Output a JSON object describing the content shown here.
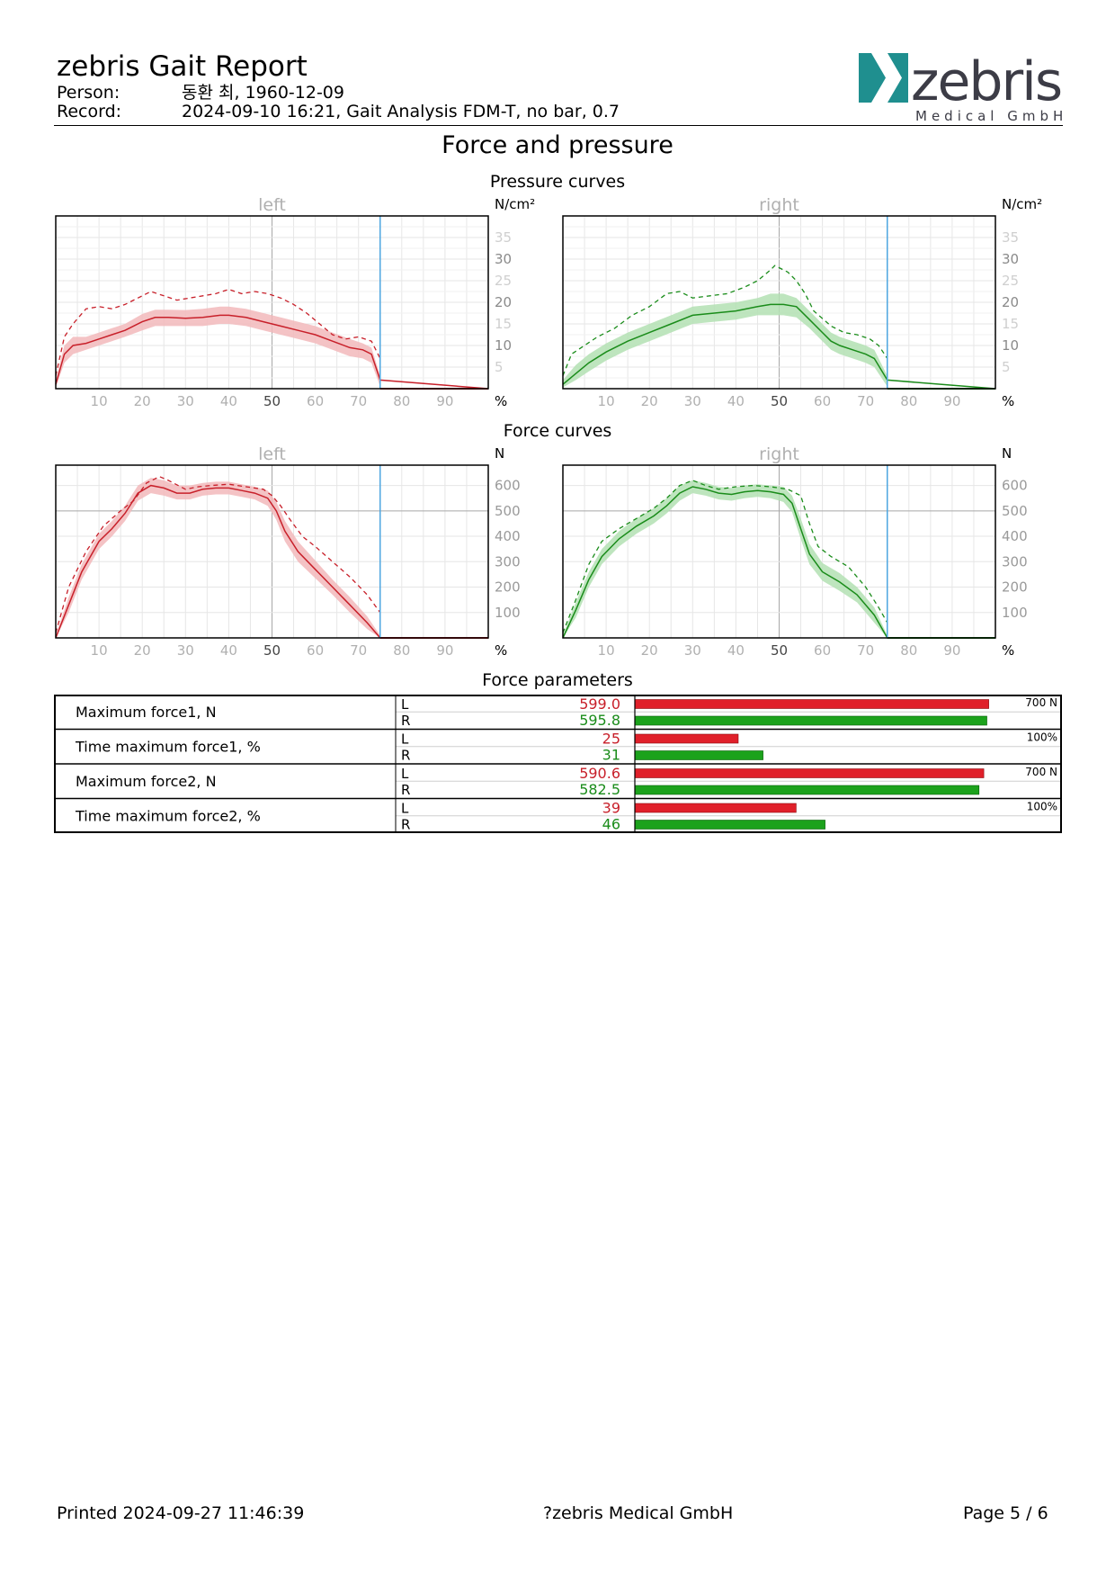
{
  "header": {
    "title": "zebris Gait Report",
    "person_label": "Person:",
    "person_value": "동환 최, 1960-12-09",
    "record_label": "Record:",
    "record_value": "2024-09-10 16:21, Gait Analysis FDM-T, no bar, 0.7",
    "logo_name": "zebris",
    "logo_sub": "Medical GmbH"
  },
  "section_title": "Force and pressure",
  "pressure_title": "Pressure curves",
  "force_title": "Force curves",
  "params_title": "Force parameters",
  "colors": {
    "left": "#c8202a",
    "left_band": "#f2b8bb",
    "right": "#1a8c1a",
    "right_band": "#b3e0b3",
    "stance_marker": "#4da6e0",
    "grid": "#e6e6e6",
    "grid_major": "#a8a8a8",
    "tick_faint": "#b0b0b0"
  },
  "chart_data": [
    {
      "type": "line",
      "title": "left",
      "ylabel": "N/cm²",
      "xlabel": "%",
      "xlim": [
        0,
        100
      ],
      "ylim": [
        0,
        40
      ],
      "xticks": [
        10,
        20,
        30,
        40,
        50,
        60,
        70,
        80,
        90
      ],
      "yticks": [
        5,
        10,
        15,
        20,
        25,
        30,
        35
      ],
      "stance_end": 75,
      "series": [
        {
          "style": "mean",
          "x": [
            0,
            2,
            4,
            7,
            10,
            13,
            16,
            20,
            23,
            26,
            30,
            34,
            38,
            40,
            44,
            48,
            52,
            56,
            60,
            64,
            68,
            71,
            73,
            75,
            100
          ],
          "y": [
            1,
            8,
            10,
            10.5,
            11.5,
            12.5,
            13.5,
            15.5,
            16.5,
            16.5,
            16.3,
            16.5,
            17,
            17,
            16.5,
            15.5,
            14.5,
            13.5,
            12.5,
            11,
            9.5,
            9,
            8,
            2,
            0
          ]
        },
        {
          "style": "band_upper",
          "x": [
            0,
            2,
            4,
            7,
            10,
            13,
            16,
            20,
            23,
            26,
            30,
            34,
            38,
            40,
            44,
            48,
            52,
            56,
            60,
            64,
            68,
            71,
            73,
            75
          ],
          "y": [
            2,
            10,
            12,
            12,
            13,
            14,
            15,
            17.3,
            18.3,
            18.3,
            18.2,
            18.5,
            19,
            19,
            18.5,
            17.5,
            16.5,
            15.5,
            14.5,
            13,
            11.5,
            10.5,
            9.5,
            3
          ]
        },
        {
          "style": "band_lower",
          "x": [
            0,
            2,
            4,
            7,
            10,
            13,
            16,
            20,
            23,
            26,
            30,
            34,
            38,
            40,
            44,
            48,
            52,
            56,
            60,
            64,
            68,
            71,
            73,
            75
          ],
          "y": [
            0.3,
            6,
            8,
            9,
            10,
            11,
            12,
            13.5,
            14.5,
            14.5,
            14.5,
            14.5,
            15,
            15,
            14.5,
            13.5,
            12.5,
            11.5,
            10.5,
            9,
            7.5,
            7,
            6,
            0.5
          ]
        },
        {
          "style": "max",
          "x": [
            0,
            2,
            4,
            7,
            10,
            13,
            16,
            19,
            22,
            25,
            28,
            31,
            34,
            37,
            40,
            43,
            46,
            49,
            52,
            55,
            58,
            61,
            64,
            67,
            70,
            73,
            75
          ],
          "y": [
            3,
            12,
            15,
            18.5,
            19,
            18.5,
            19.5,
            21,
            22.5,
            21.5,
            20.5,
            21,
            21.5,
            22,
            23,
            22,
            22.5,
            22,
            21,
            19.5,
            17.5,
            15,
            12.5,
            11.5,
            12,
            11,
            7
          ]
        },
        {
          "style": "swing",
          "x": [
            75,
            100
          ],
          "y": [
            0,
            0
          ]
        }
      ]
    },
    {
      "type": "line",
      "title": "right",
      "ylabel": "N/cm²",
      "xlabel": "%",
      "xlim": [
        0,
        100
      ],
      "ylim": [
        0,
        40
      ],
      "xticks": [
        10,
        20,
        30,
        40,
        50,
        60,
        70,
        80,
        90
      ],
      "yticks": [
        5,
        10,
        15,
        20,
        25,
        30,
        35
      ],
      "stance_end": 75,
      "series": [
        {
          "style": "mean",
          "x": [
            0,
            3,
            6,
            10,
            15,
            20,
            25,
            30,
            35,
            40,
            45,
            48,
            51,
            54,
            57,
            60,
            62,
            64,
            67,
            70,
            72,
            75,
            100
          ],
          "y": [
            1,
            3.5,
            6,
            8.5,
            11,
            13,
            15,
            17,
            17.5,
            18,
            19,
            19.5,
            19.5,
            19,
            16,
            13,
            11,
            10,
            9,
            8,
            7,
            2,
            0
          ]
        },
        {
          "style": "band_upper",
          "x": [
            0,
            3,
            6,
            10,
            15,
            20,
            25,
            30,
            35,
            40,
            45,
            48,
            51,
            54,
            57,
            60,
            62,
            64,
            67,
            70,
            72,
            75
          ],
          "y": [
            2,
            5.5,
            8,
            10.5,
            13,
            15,
            17,
            19,
            19.5,
            20,
            21,
            22,
            22,
            21,
            18,
            15,
            13,
            12,
            11,
            10,
            9,
            3
          ]
        },
        {
          "style": "band_lower",
          "x": [
            0,
            3,
            6,
            10,
            15,
            20,
            25,
            30,
            35,
            40,
            45,
            48,
            51,
            54,
            57,
            60,
            62,
            64,
            67,
            70,
            72,
            75
          ],
          "y": [
            0.3,
            2,
            4,
            6.5,
            9,
            11,
            13,
            15,
            15.5,
            16,
            17,
            17,
            17,
            16.5,
            14,
            11,
            9,
            8,
            7,
            6,
            5,
            0.5
          ]
        },
        {
          "style": "max",
          "x": [
            0,
            2,
            5,
            8,
            12,
            16,
            20,
            24,
            27,
            30,
            34,
            38,
            42,
            45,
            48,
            49,
            52,
            54,
            56,
            58,
            62,
            65,
            68,
            71,
            73,
            75
          ],
          "y": [
            3,
            8,
            10,
            12,
            14,
            17,
            19,
            22,
            22.5,
            21,
            21.5,
            22,
            23.5,
            25,
            27.5,
            28.5,
            27,
            25,
            22,
            18,
            14.5,
            13,
            12.5,
            11.5,
            10,
            7
          ]
        },
        {
          "style": "swing",
          "x": [
            75,
            100
          ],
          "y": [
            0,
            0
          ]
        }
      ]
    },
    {
      "type": "line",
      "title": "left",
      "ylabel": "N",
      "xlabel": "%",
      "xlim": [
        0,
        100
      ],
      "ylim": [
        0,
        680
      ],
      "xticks": [
        10,
        20,
        30,
        40,
        50,
        60,
        70,
        80,
        90
      ],
      "yticks": [
        100,
        200,
        300,
        400,
        500,
        600
      ],
      "stance_end": 75,
      "series": [
        {
          "style": "mean",
          "x": [
            0,
            3,
            6,
            10,
            13,
            16,
            19,
            22,
            25,
            28,
            31,
            34,
            37,
            40,
            43,
            46,
            49,
            51,
            53,
            56,
            60,
            64,
            68,
            72,
            75,
            100
          ],
          "y": [
            0,
            130,
            260,
            380,
            430,
            490,
            570,
            600,
            590,
            570,
            570,
            585,
            590,
            590,
            580,
            570,
            550,
            500,
            420,
            340,
            270,
            200,
            130,
            60,
            0,
            0
          ]
        },
        {
          "style": "band_upper",
          "x": [
            0,
            3,
            6,
            10,
            13,
            16,
            19,
            22,
            25,
            28,
            31,
            34,
            37,
            40,
            43,
            46,
            49,
            51,
            53,
            56,
            60,
            64,
            68,
            72,
            75
          ],
          "y": [
            10,
            160,
            290,
            410,
            460,
            520,
            600,
            630,
            620,
            600,
            600,
            610,
            615,
            615,
            605,
            595,
            580,
            535,
            460,
            380,
            305,
            230,
            160,
            85,
            10
          ]
        },
        {
          "style": "band_lower",
          "x": [
            0,
            3,
            6,
            10,
            13,
            16,
            19,
            22,
            25,
            28,
            31,
            34,
            37,
            40,
            43,
            46,
            49,
            51,
            53,
            56,
            60,
            64,
            68,
            72,
            75
          ],
          "y": [
            0,
            100,
            230,
            350,
            400,
            460,
            540,
            570,
            560,
            545,
            545,
            560,
            565,
            565,
            555,
            545,
            520,
            465,
            380,
            300,
            235,
            170,
            100,
            35,
            0
          ]
        },
        {
          "style": "max",
          "x": [
            0,
            3,
            7,
            11,
            15,
            18,
            21,
            24,
            26,
            30,
            33,
            36,
            40,
            44,
            48,
            50,
            52,
            54,
            57,
            60,
            64,
            68,
            72,
            75
          ],
          "y": [
            20,
            200,
            340,
            440,
            500,
            540,
            610,
            635,
            620,
            585,
            595,
            600,
            605,
            595,
            585,
            560,
            520,
            470,
            400,
            360,
            300,
            240,
            170,
            100
          ]
        },
        {
          "style": "swing",
          "x": [
            75,
            100
          ],
          "y": [
            0,
            0
          ]
        }
      ]
    },
    {
      "type": "line",
      "title": "right",
      "ylabel": "N",
      "xlabel": "%",
      "xlim": [
        0,
        100
      ],
      "ylim": [
        0,
        680
      ],
      "xticks": [
        10,
        20,
        30,
        40,
        50,
        60,
        70,
        80,
        90
      ],
      "yticks": [
        100,
        200,
        300,
        400,
        500,
        600
      ],
      "stance_end": 75,
      "series": [
        {
          "style": "mean",
          "x": [
            0,
            3,
            6,
            9,
            13,
            17,
            21,
            24,
            27,
            30,
            33,
            36,
            39,
            42,
            45,
            48,
            51,
            53,
            55,
            57,
            60,
            64,
            68,
            72,
            75,
            100
          ],
          "y": [
            0,
            110,
            230,
            320,
            390,
            440,
            480,
            520,
            570,
            595,
            585,
            570,
            565,
            575,
            580,
            575,
            565,
            530,
            430,
            330,
            260,
            220,
            170,
            90,
            0,
            0
          ]
        },
        {
          "style": "band_upper",
          "x": [
            0,
            3,
            6,
            9,
            13,
            17,
            21,
            24,
            27,
            30,
            33,
            36,
            39,
            42,
            45,
            48,
            51,
            53,
            55,
            57,
            60,
            64,
            68,
            72,
            75
          ],
          "y": [
            10,
            140,
            260,
            350,
            420,
            470,
            510,
            550,
            600,
            620,
            610,
            595,
            590,
            600,
            605,
            600,
            595,
            560,
            470,
            370,
            295,
            255,
            200,
            120,
            10
          ]
        },
        {
          "style": "band_lower",
          "x": [
            0,
            3,
            6,
            9,
            13,
            17,
            21,
            24,
            27,
            30,
            33,
            36,
            39,
            42,
            45,
            48,
            51,
            53,
            55,
            57,
            60,
            64,
            68,
            72,
            75
          ],
          "y": [
            0,
            80,
            200,
            290,
            360,
            410,
            450,
            490,
            540,
            570,
            560,
            545,
            540,
            550,
            555,
            550,
            535,
            495,
            390,
            290,
            225,
            185,
            140,
            60,
            0
          ]
        },
        {
          "style": "max",
          "x": [
            0,
            3,
            6,
            9,
            13,
            17,
            21,
            24,
            27,
            30,
            33,
            36,
            40,
            44,
            48,
            52,
            55,
            57,
            59,
            62,
            66,
            70,
            73,
            75
          ],
          "y": [
            20,
            150,
            290,
            380,
            430,
            470,
            510,
            550,
            600,
            620,
            600,
            585,
            595,
            600,
            595,
            585,
            560,
            450,
            360,
            320,
            280,
            200,
            120,
            60
          ]
        },
        {
          "style": "swing",
          "x": [
            75,
            100
          ],
          "y": [
            0,
            0
          ]
        }
      ]
    },
    {
      "type": "table",
      "title": "Force parameters",
      "rows": [
        {
          "label": "Maximum force1, N",
          "scale_label": "700 N",
          "scale_max": 700,
          "left": {
            "side": "L",
            "text": "599.0",
            "value": 599.0
          },
          "right": {
            "side": "R",
            "text": "595.8",
            "value": 595.8
          }
        },
        {
          "label": "Time maximum force1, %",
          "scale_label": "100%",
          "scale_max": 100,
          "left": {
            "side": "L",
            "text": "25",
            "value": 25
          },
          "right": {
            "side": "R",
            "text": "31",
            "value": 31
          }
        },
        {
          "label": "Maximum force2, N",
          "scale_label": "700 N",
          "scale_max": 700,
          "left": {
            "side": "L",
            "text": "590.6",
            "value": 590.6
          },
          "right": {
            "side": "R",
            "text": "582.5",
            "value": 582.5
          }
        },
        {
          "label": "Time maximum force2, %",
          "scale_label": "100%",
          "scale_max": 100,
          "left": {
            "side": "L",
            "text": "39",
            "value": 39
          },
          "right": {
            "side": "R",
            "text": "46",
            "value": 46
          }
        }
      ]
    }
  ],
  "footer": {
    "printed": "Printed  2024-09-27 11:46:39",
    "company": "?zebris Medical GmbH",
    "page": "Page  5 / 6"
  }
}
